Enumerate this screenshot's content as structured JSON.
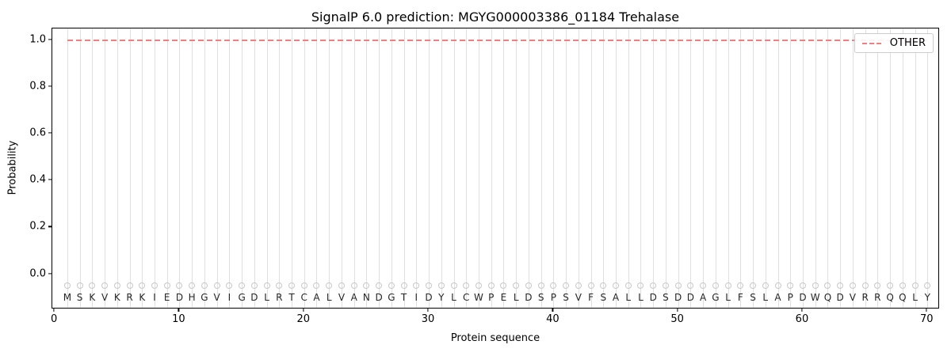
{
  "chart_data": {
    "type": "line",
    "title": "SignalP 6.0 prediction: MGYG000003386_01184 Trehalase",
    "xlabel": "Protein sequence",
    "ylabel": "Probability",
    "xlim": [
      -0.2,
      71.0
    ],
    "ylim": [
      -0.15,
      1.05
    ],
    "xticks": [
      0,
      10,
      20,
      30,
      40,
      50,
      60,
      70
    ],
    "yticks": [
      0.0,
      0.2,
      0.4,
      0.6,
      0.8,
      1.0
    ],
    "grid": {
      "vertical_per_residue": true,
      "color": "#e0e0e0"
    },
    "legend": {
      "position": "upper-right",
      "entries": [
        {
          "label": "OTHER",
          "color": "#f08080",
          "linestyle": "dashed"
        }
      ]
    },
    "series": [
      {
        "name": "OTHER",
        "color": "#f08080",
        "linestyle": "dashed",
        "y": 1.0,
        "x_start": 1,
        "x_end": 70
      }
    ],
    "sequence": "MSKVKRKIEDHGVIGDLRTCALVANDGTIDYLCWPELDSPSVFSALLDSDDAGLFSLAPDWQDVRRQQLY",
    "sequence_marker": {
      "shape": "circle",
      "y": -0.05,
      "color": "#c8c8c8"
    },
    "sequence_label_y": -0.1
  }
}
